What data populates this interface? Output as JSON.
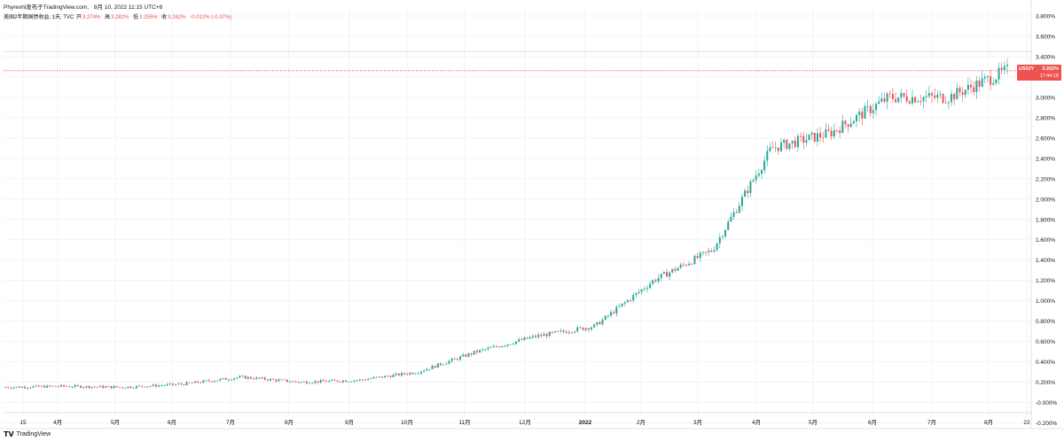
{
  "header": {
    "publisher": "Phyrexhl发布于TradingView.com,",
    "date": "8月 10, 2022 11:15 UTC+8"
  },
  "legend": {
    "symbol": "美国2年期国债收益, 1天, TVC",
    "open_label": "开",
    "open_value": "3.274%",
    "high_label": "高",
    "high_value": "3.282%",
    "low_label": "低",
    "low_value": "3.255%",
    "close_label": "收",
    "close_value": "3.262%",
    "change": "-0.012% (-0.37%)"
  },
  "price_badge": {
    "symbol": "US02Y",
    "value": "3.262%",
    "countdown": "17:44:18"
  },
  "footer": {
    "logo_text": "TradingView"
  },
  "colors": {
    "up": "#26a69a",
    "down": "#ef5350",
    "grid": "#f0f3fa",
    "dotted_line": "#b2b5be"
  },
  "chart_data": {
    "type": "candlestick",
    "title": "美国2年期国债收益, 1天, TVC",
    "y_unit": "%",
    "ylim": [
      -0.2,
      3.8
    ],
    "y_ticks": [
      "3.800%",
      "3.600%",
      "3.400%",
      "3.200%",
      "3.000%",
      "2.800%",
      "2.600%",
      "2.400%",
      "2.200%",
      "2.000%",
      "1.800%",
      "1.600%",
      "1.400%",
      "1.200%",
      "1.000%",
      "0.800%",
      "0.600%",
      "0.400%",
      "0.200%",
      "-0.000%",
      "-0.200%"
    ],
    "x_ticks": [
      "15",
      "4月",
      "5月",
      "6月",
      "7月",
      "8月",
      "9月",
      "10月",
      "11月",
      "12月",
      "2022",
      "2月",
      "3月",
      "4月",
      "5月",
      "6月",
      "7月",
      "8月",
      "22"
    ],
    "last_price": 3.262,
    "horizontal_lines": [
      3.45,
      -0.1
    ],
    "monthly_closes": [
      {
        "date": "2021-03",
        "close": 0.15
      },
      {
        "date": "2021-04",
        "close": 0.16
      },
      {
        "date": "2021-05",
        "close": 0.15
      },
      {
        "date": "2021-06",
        "close": 0.18
      },
      {
        "date": "2021-07",
        "close": 0.25
      },
      {
        "date": "2021-08",
        "close": 0.2
      },
      {
        "date": "2021-09",
        "close": 0.22
      },
      {
        "date": "2021-10",
        "close": 0.3
      },
      {
        "date": "2021-11",
        "close": 0.5
      },
      {
        "date": "2021-12",
        "close": 0.65
      },
      {
        "date": "2022-01",
        "close": 0.75
      },
      {
        "date": "2022-02",
        "close": 1.2
      },
      {
        "date": "2022-03",
        "close": 1.5
      },
      {
        "date": "2022-04",
        "close": 2.5
      },
      {
        "date": "2022-05",
        "close": 2.65
      },
      {
        "date": "2022-06",
        "close": 3.0
      },
      {
        "date": "2022-07",
        "close": 3.0
      },
      {
        "date": "2022-08",
        "close": 3.262
      }
    ]
  }
}
